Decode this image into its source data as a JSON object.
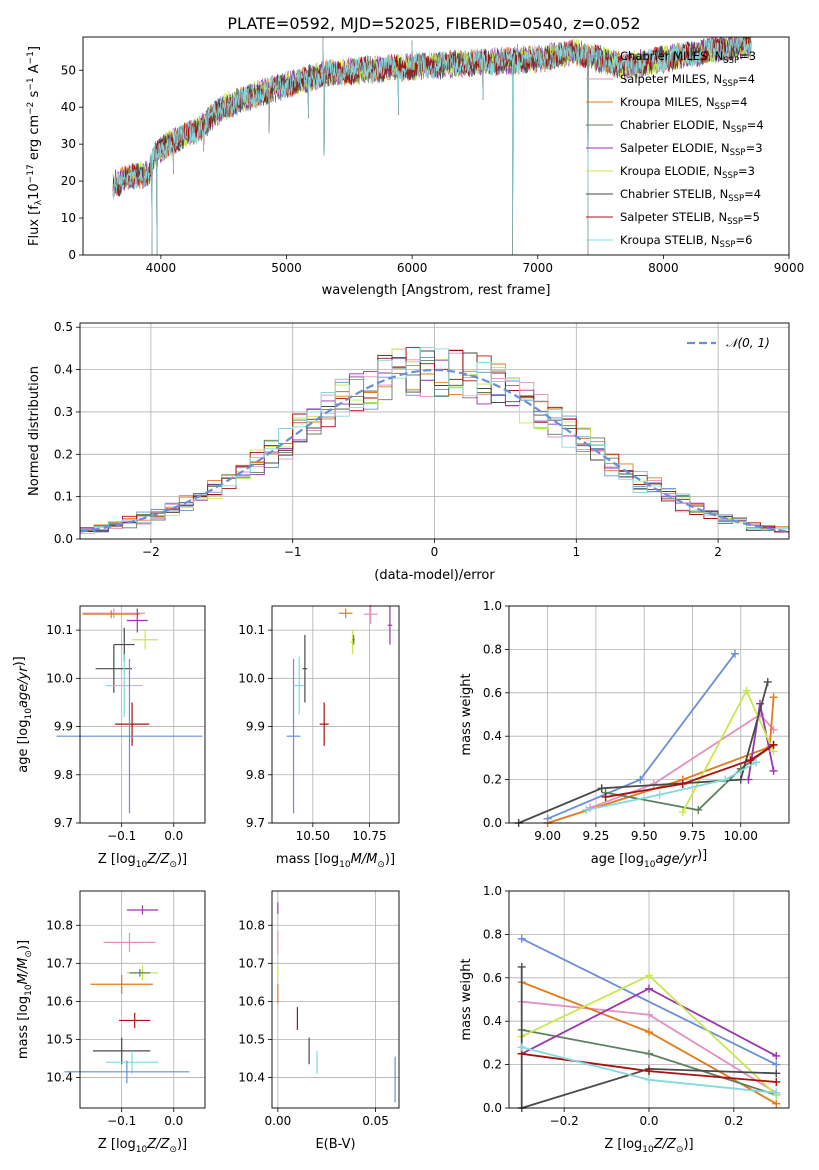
{
  "figure_title": "PLATE=0592, MJD=52025, FIBERID=0540, z=0.052",
  "colors": {
    "chabrier_miles": "#6a8fd8",
    "salpeter_miles": "#e58fc0",
    "kroupa_miles": "#e27a1c",
    "chabrier_elodie": "#5f7f61",
    "salpeter_elodie": "#9a35b0",
    "kroupa_elodie": "#c9e84f",
    "chabrier_stelib": "#4a4a4a",
    "salpeter_stelib": "#a81010",
    "kroupa_stelib": "#84d9dc"
  },
  "chart_data": [
    {
      "id": "spectrum",
      "type": "line",
      "xlabel": "wavelength [Angstrom, rest frame]",
      "ylabel": "Flux [f",
      "ylabel_parts": [
        "Flux [f",
        "λ",
        "10",
        "−17",
        " erg cm",
        "−2",
        " s",
        "−1",
        " A",
        "−1",
        "]"
      ],
      "xlim": [
        3380,
        9000
      ],
      "ylim": [
        0,
        59
      ],
      "xticks": [
        4000,
        5000,
        6000,
        7000,
        8000,
        9000
      ],
      "yticks": [
        0,
        10,
        20,
        30,
        40,
        50
      ],
      "grid": false,
      "legend_position": "right",
      "x_range": [
        3620,
        8700
      ],
      "trend": {
        "x": [
          3620,
          3750,
          3900,
          3950,
          4050,
          4300,
          4500,
          4800,
          5000,
          5300,
          5600,
          6000,
          6500,
          7000,
          7300,
          7700,
          8000,
          8300,
          8700
        ],
        "y": [
          19,
          21,
          22,
          27,
          30,
          34,
          40,
          44,
          46,
          49,
          50,
          51,
          52,
          53,
          55,
          51,
          53,
          55,
          57
        ]
      },
      "spikes": [
        {
          "x": 3930,
          "y": 0
        },
        {
          "x": 3968,
          "y": 0
        },
        {
          "x": 4100,
          "y": 22
        },
        {
          "x": 4340,
          "y": 28
        },
        {
          "x": 4861,
          "y": 33
        },
        {
          "x": 5175,
          "y": 37
        },
        {
          "x": 5290,
          "y": 59
        },
        {
          "x": 5300,
          "y": 27
        },
        {
          "x": 5892,
          "y": 38
        },
        {
          "x": 6000,
          "y": 58
        },
        {
          "x": 6563,
          "y": 42
        },
        {
          "x": 6800,
          "y": 0
        },
        {
          "x": 6840,
          "y": 57
        },
        {
          "x": 7400,
          "y": 0
        }
      ],
      "series": [
        {
          "name": "Chabrier MILES, N",
          "nssp": "=3"
        },
        {
          "name": "Salpeter MILES, N",
          "nssp": "=4"
        },
        {
          "name": "Kroupa MILES, N",
          "nssp": "=4"
        },
        {
          "name": "Chabrier ELODIE, N",
          "nssp": "=4"
        },
        {
          "name": "Salpeter ELODIE, N",
          "nssp": "=3"
        },
        {
          "name": "Kroupa ELODIE, N",
          "nssp": "=3"
        },
        {
          "name": "Chabrier STELIB, N",
          "nssp": "=4"
        },
        {
          "name": "Salpeter STELIB, N",
          "nssp": "=5"
        },
        {
          "name": "Kroupa STELIB, N",
          "nssp": "=6"
        }
      ],
      "legend_subscript": "SSP"
    },
    {
      "id": "residuals",
      "type": "histogram",
      "xlabel": "(data-model)/error",
      "ylabel": "Normed distribution",
      "xlim": [
        -2.5,
        2.5
      ],
      "ylim": [
        0,
        0.51
      ],
      "xticks": [
        -2,
        -1,
        0,
        1,
        2
      ],
      "yticks": [
        0.0,
        0.1,
        0.2,
        0.3,
        0.4,
        0.5
      ],
      "grid": true,
      "bin_width": 0.1,
      "reference_curve": {
        "name": "𝒩(0, 1)",
        "style": "dashed",
        "color": "#6a8fd8"
      },
      "legend_position": "top-right"
    },
    {
      "id": "age_vs_z",
      "type": "scatter",
      "xlabel": "Z [log10(Z/Z☉)]",
      "ylabel": "age  [log10(age/yr)]",
      "xlim": [
        -0.18,
        0.06
      ],
      "ylim": [
        9.7,
        10.15
      ],
      "xticks": [
        -0.1,
        0.0
      ],
      "yticks": [
        9.7,
        9.8,
        9.9,
        10.0,
        10.1
      ],
      "grid": true,
      "points": [
        {
          "series": "salpeter_miles",
          "x": -0.115,
          "y": 10.135,
          "xerr": 0.06,
          "yerr": 0.01
        },
        {
          "series": "kroupa_miles",
          "x": -0.12,
          "y": 10.133,
          "xerr": 0.055,
          "yerr": 0.008
        },
        {
          "series": "salpeter_elodie",
          "x": -0.07,
          "y": 10.12,
          "xerr": 0.02,
          "yerr": 0.025
        },
        {
          "series": "kroupa_elodie",
          "x": -0.055,
          "y": 10.08,
          "xerr": 0.025,
          "yerr": 0.02
        },
        {
          "series": "chabrier_stelib",
          "x": -0.095,
          "y": 10.07,
          "xerr": 0.02,
          "yerr": 0.035
        },
        {
          "series": "chabrier_stelib",
          "x": -0.115,
          "y": 10.02,
          "xerr": 0.035,
          "yerr": 0.05
        },
        {
          "series": "kroupa_stelib",
          "x": -0.095,
          "y": 9.985,
          "xerr": 0.035,
          "yerr": 0.065
        },
        {
          "series": "salpeter_stelib",
          "x": -0.08,
          "y": 9.905,
          "xerr": 0.033,
          "yerr": 0.045
        },
        {
          "series": "chabrier_miles",
          "x": -0.085,
          "y": 9.88,
          "xerr": 0.14,
          "yerr": 0.16
        }
      ]
    },
    {
      "id": "age_vs_mass",
      "type": "scatter",
      "xlabel": "mass [log10(M/M☉)]",
      "xlim": [
        10.32,
        10.88
      ],
      "ylim": [
        9.7,
        10.15
      ],
      "xticks": [
        10.5,
        10.75
      ],
      "yticks": [
        9.7,
        9.8,
        9.9,
        10.0,
        10.1
      ],
      "grid": true,
      "points": [
        {
          "series": "kroupa_miles",
          "x": 10.645,
          "y": 10.135,
          "xerr": 0.03,
          "yerr": 0.01
        },
        {
          "series": "salpeter_miles",
          "x": 10.755,
          "y": 10.133,
          "xerr": 0.03,
          "yerr": 0.02
        },
        {
          "series": "salpeter_elodie",
          "x": 10.84,
          "y": 10.11,
          "xerr": 0.01,
          "yerr": 0.04
        },
        {
          "series": "kroupa_elodie",
          "x": 10.675,
          "y": 10.075,
          "xerr": 0.01,
          "yerr": 0.025
        },
        {
          "series": "chabrier_elodie",
          "x": 10.68,
          "y": 10.08,
          "xerr": 0.005,
          "yerr": 0.01
        },
        {
          "series": "chabrier_stelib",
          "x": 10.465,
          "y": 10.02,
          "xerr": 0.01,
          "yerr": 0.07
        },
        {
          "series": "kroupa_stelib",
          "x": 10.44,
          "y": 9.985,
          "xerr": 0.02,
          "yerr": 0.06
        },
        {
          "series": "salpeter_stelib",
          "x": 10.55,
          "y": 9.905,
          "xerr": 0.02,
          "yerr": 0.045
        },
        {
          "series": "chabrier_miles",
          "x": 10.415,
          "y": 9.88,
          "xerr": 0.03,
          "yerr": 0.16
        }
      ]
    },
    {
      "id": "weights_vs_age",
      "type": "line",
      "xlabel": "age  [log10(age/yr)]",
      "ylabel": "mass weight",
      "xlim": [
        8.8,
        10.25
      ],
      "ylim": [
        0,
        1.0
      ],
      "xticks": [
        9.0,
        9.25,
        9.5,
        9.75,
        10.0
      ],
      "yticks": [
        0.0,
        0.2,
        0.4,
        0.6,
        0.8,
        1.0
      ],
      "grid": true,
      "series": [
        {
          "color": "chabrier_miles",
          "x": [
            9.0,
            9.48,
            9.97
          ],
          "y": [
            0.02,
            0.2,
            0.78
          ]
        },
        {
          "color": "salpeter_miles",
          "x": [
            9.22,
            9.55,
            10.1,
            10.17
          ],
          "y": [
            0.07,
            0.18,
            0.5,
            0.43
          ]
        },
        {
          "color": "kroupa_miles",
          "x": [
            9.0,
            9.7,
            10.15,
            10.17
          ],
          "y": [
            0.0,
            0.2,
            0.35,
            0.58
          ]
        },
        {
          "color": "chabrier_elodie",
          "x": [
            9.3,
            9.78,
            10.0,
            10.17
          ],
          "y": [
            0.14,
            0.06,
            0.25,
            0.36
          ]
        },
        {
          "color": "salpeter_elodie",
          "x": [
            10.04,
            10.1,
            10.17
          ],
          "y": [
            0.2,
            0.55,
            0.24
          ]
        },
        {
          "color": "kroupa_elodie",
          "x": [
            9.7,
            10.03,
            10.17
          ],
          "y": [
            0.05,
            0.61,
            0.33
          ]
        },
        {
          "color": "chabrier_stelib",
          "x": [
            8.85,
            9.28,
            10.0,
            10.14
          ],
          "y": [
            0.0,
            0.16,
            0.2,
            0.65
          ]
        },
        {
          "color": "salpeter_stelib",
          "x": [
            9.3,
            9.7,
            10.05,
            10.17
          ],
          "y": [
            0.12,
            0.18,
            0.29,
            0.36
          ]
        },
        {
          "color": "kroupa_stelib",
          "x": [
            9.2,
            9.58,
            9.92,
            10.08
          ],
          "y": [
            0.06,
            0.13,
            0.2,
            0.28
          ]
        }
      ]
    },
    {
      "id": "mass_vs_z",
      "type": "scatter",
      "xlabel": "Z [log10(Z/Z☉)]",
      "ylabel": "mass [log10(M/M☉)]",
      "xlim": [
        -0.18,
        0.06
      ],
      "ylim": [
        10.32,
        10.89
      ],
      "xticks": [
        -0.1,
        0.0
      ],
      "yticks": [
        10.4,
        10.5,
        10.6,
        10.7,
        10.8
      ],
      "grid": true,
      "points": [
        {
          "series": "salpeter_elodie",
          "x": -0.06,
          "y": 10.84,
          "xerr": 0.03,
          "yerr": 0.012
        },
        {
          "series": "salpeter_miles",
          "x": -0.085,
          "y": 10.755,
          "xerr": 0.05,
          "yerr": 0.025
        },
        {
          "series": "kroupa_elodie",
          "x": -0.06,
          "y": 10.675,
          "xerr": 0.03,
          "yerr": 0.02
        },
        {
          "series": "chabrier_elodie",
          "x": -0.065,
          "y": 10.675,
          "xerr": 0.02,
          "yerr": 0.01
        },
        {
          "series": "kroupa_miles",
          "x": -0.1,
          "y": 10.645,
          "xerr": 0.06,
          "yerr": 0.025
        },
        {
          "series": "salpeter_stelib",
          "x": -0.075,
          "y": 10.55,
          "xerr": 0.03,
          "yerr": 0.02
        },
        {
          "series": "chabrier_stelib",
          "x": -0.1,
          "y": 10.47,
          "xerr": 0.055,
          "yerr": 0.035
        },
        {
          "series": "kroupa_stelib",
          "x": -0.08,
          "y": 10.44,
          "xerr": 0.05,
          "yerr": 0.03
        },
        {
          "series": "chabrier_miles",
          "x": -0.09,
          "y": 10.415,
          "xerr": 0.12,
          "yerr": 0.03
        }
      ]
    },
    {
      "id": "mass_vs_ebv",
      "type": "scatter",
      "xlabel": "E(B-V)",
      "xlim": [
        -0.003,
        0.062
      ],
      "ylim": [
        10.32,
        10.89
      ],
      "xticks": [
        0.0,
        0.05
      ],
      "yticks": [
        10.4,
        10.5,
        10.6,
        10.7,
        10.8
      ],
      "grid": true,
      "points": [
        {
          "series": "salpeter_elodie",
          "x": 0.0,
          "y": 10.845,
          "xerr": 0.0,
          "yerr": 0.015
        },
        {
          "series": "salpeter_miles",
          "x": 0.0,
          "y": 10.755,
          "xerr": 0.0,
          "yerr": 0.03
        },
        {
          "series": "kroupa_elodie",
          "x": 0.0,
          "y": 10.68,
          "xerr": 0.0,
          "yerr": 0.02
        },
        {
          "series": "kroupa_miles",
          "x": 0.0,
          "y": 10.62,
          "xerr": 0.0,
          "yerr": 0.025
        },
        {
          "series": "salpeter_stelib",
          "x": 0.01,
          "y": 10.555,
          "xerr": 0.0,
          "yerr": 0.03
        },
        {
          "series": "chabrier_stelib",
          "x": 0.016,
          "y": 10.47,
          "xerr": 0.0,
          "yerr": 0.035
        },
        {
          "series": "kroupa_stelib",
          "x": 0.02,
          "y": 10.44,
          "xerr": 0.0,
          "yerr": 0.03
        },
        {
          "series": "chabrier_miles",
          "x": 0.06,
          "y": 10.395,
          "xerr": 0.0,
          "yerr": 0.06
        }
      ]
    },
    {
      "id": "weights_vs_z",
      "type": "line",
      "xlabel": "Z [log10(Z/Z☉)]",
      "ylabel": "mass weight",
      "xlim": [
        -0.33,
        0.33
      ],
      "ylim": [
        0,
        1.0
      ],
      "xticks": [
        -0.2,
        0.0,
        0.2
      ],
      "yticks": [
        0.0,
        0.2,
        0.4,
        0.6,
        0.8,
        1.0
      ],
      "grid": true,
      "series": [
        {
          "color": "chabrier_miles",
          "x": [
            -0.3,
            0.3
          ],
          "y": [
            0.78,
            0.2
          ]
        },
        {
          "color": "salpeter_miles",
          "x": [
            -0.3,
            0.0,
            0.3
          ],
          "y": [
            0.49,
            0.43,
            0.07
          ]
        },
        {
          "color": "kroupa_miles",
          "x": [
            -0.3,
            0.0,
            0.3
          ],
          "y": [
            0.58,
            0.35,
            0.02
          ]
        },
        {
          "color": "chabrier_elodie",
          "x": [
            -0.3,
            0.0,
            0.3
          ],
          "y": [
            0.36,
            0.25,
            0.06
          ]
        },
        {
          "color": "salpeter_elodie",
          "x": [
            -0.3,
            0.0,
            0.3
          ],
          "y": [
            0.25,
            0.55,
            0.24
          ]
        },
        {
          "color": "kroupa_elodie",
          "x": [
            -0.3,
            0.0,
            0.3
          ],
          "y": [
            0.33,
            0.61,
            0.06
          ]
        },
        {
          "color": "chabrier_stelib",
          "x": [
            -0.3,
            -0.3,
            0.0,
            0.3
          ],
          "y": [
            0.65,
            0.0,
            0.18,
            0.16
          ]
        },
        {
          "color": "salpeter_stelib",
          "x": [
            -0.3,
            0.0,
            0.3
          ],
          "y": [
            0.25,
            0.17,
            0.12
          ]
        },
        {
          "color": "kroupa_stelib",
          "x": [
            -0.3,
            0.0,
            0.3
          ],
          "y": [
            0.28,
            0.13,
            0.07
          ]
        }
      ]
    }
  ]
}
